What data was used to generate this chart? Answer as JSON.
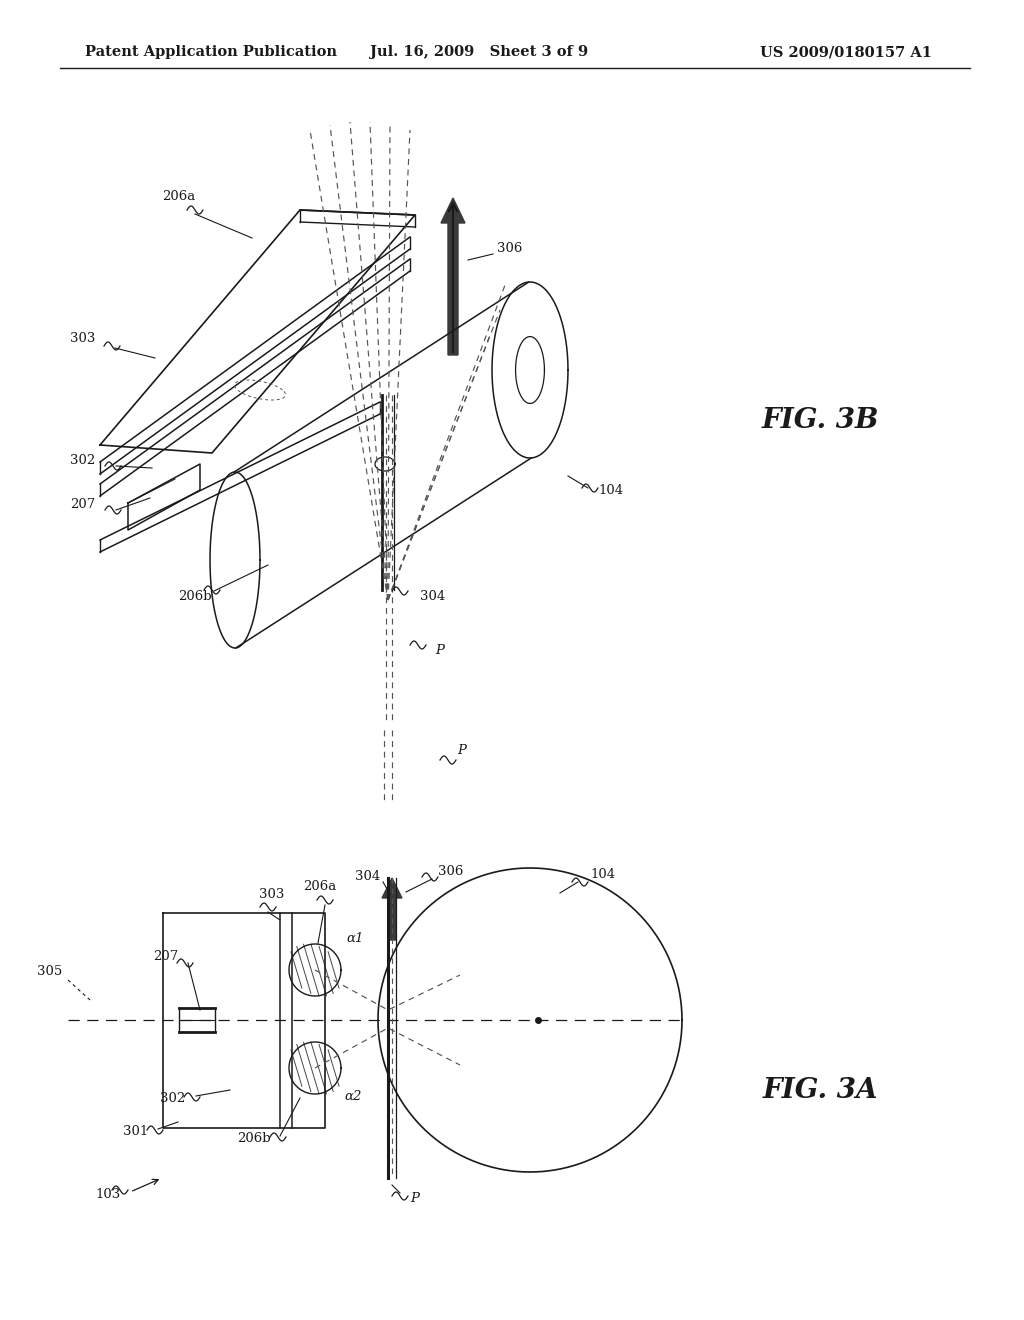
{
  "header_left": "Patent Application Publication",
  "header_center": "Jul. 16, 2009   Sheet 3 of 9",
  "header_right": "US 2009/0180157 A1",
  "fig3b_label": "FIG. 3B",
  "fig3a_label": "FIG. 3A",
  "background_color": "#ffffff",
  "line_color": "#1a1a1a",
  "dashed_color": "#555555"
}
